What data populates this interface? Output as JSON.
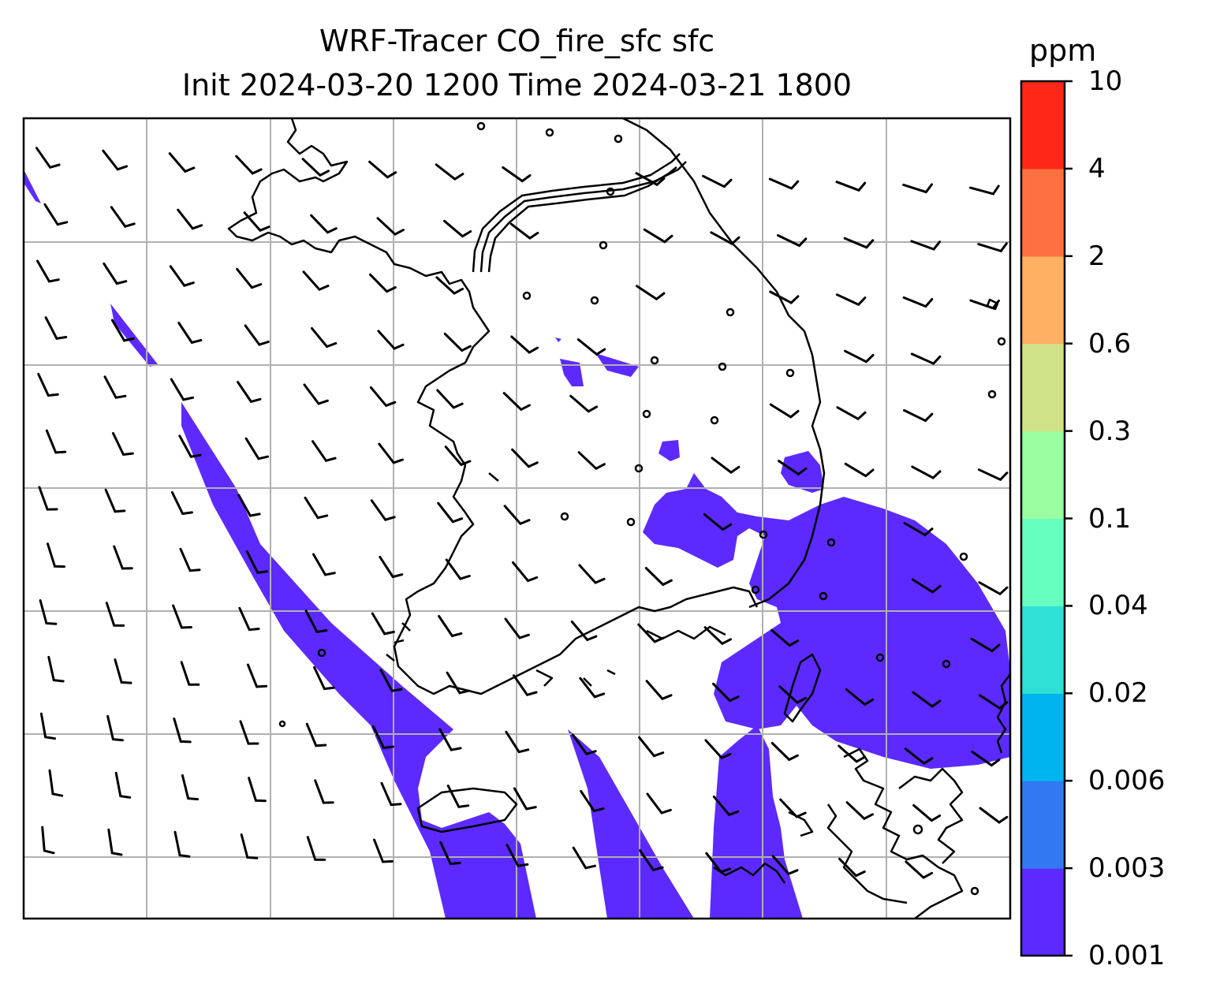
{
  "title": {
    "line1": "WRF-Tracer CO_fire_sfc sfc",
    "line2": "Init 2024-03-20 1200 Time 2024-03-21 1800"
  },
  "colorbar": {
    "unit": "ppm",
    "levels": [
      "0.001",
      "0.003",
      "0.006",
      "0.02",
      "0.04",
      "0.1",
      "0.3",
      "0.6",
      "2",
      "4",
      "10"
    ],
    "colors": [
      "#5c2aff",
      "#3278f0",
      "#00b4f0",
      "#2fe0d6",
      "#66ffc0",
      "#9affa0",
      "#d0e288",
      "#ffb060",
      "#ff7040",
      "#ff2818"
    ]
  },
  "map": {
    "field": "CO_fire_sfc",
    "plume_color": "#5c2aff",
    "gridlines": true,
    "wind_barbs": true
  }
}
